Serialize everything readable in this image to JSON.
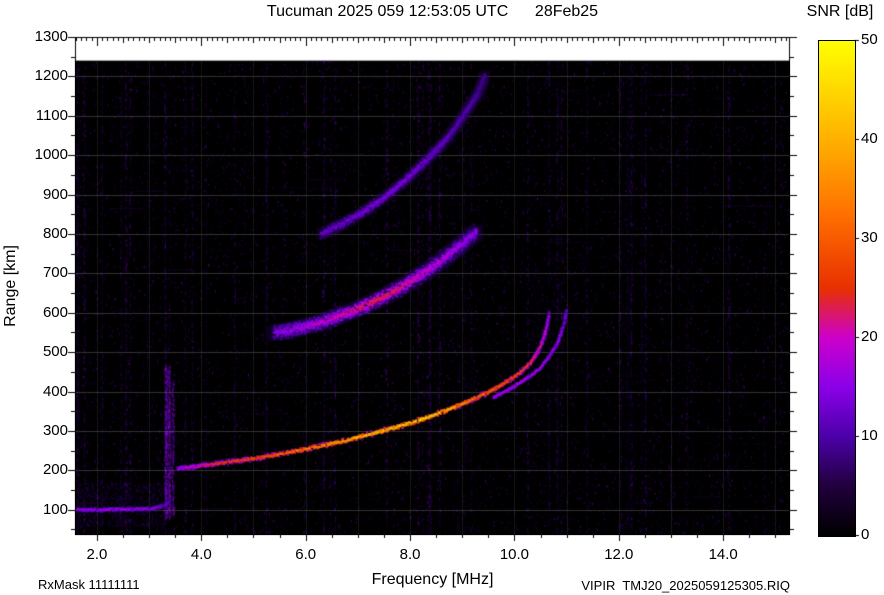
{
  "header": {
    "title": "Tucuman 2025 059 12:53:05 UTC      28Feb25",
    "colorbar_title": "SNR [dB]"
  },
  "footer": {
    "rx_mask": "RxMask 11111111",
    "xlabel": "Frequency [MHz]",
    "filename": "VIPIR  TMJ20_2025059125305.RIQ"
  },
  "chart_data": {
    "type": "heatmap",
    "title": "Tucuman 2025 059 12:53:05 UTC 28Feb25",
    "xlabel": "Frequency [MHz]",
    "ylabel": "Range [km]",
    "xlim": [
      1.58,
      15.28
    ],
    "ylim": [
      36,
      1300
    ],
    "data_top_range": 1240,
    "grid": true,
    "background": "#000000",
    "x_ticks": [
      2.0,
      4.0,
      6.0,
      8.0,
      10.0,
      12.0,
      14.0
    ],
    "x_tick_labels": [
      "2.0",
      "4.0",
      "6.0",
      "8.0",
      "10.0",
      "12.0",
      "14.0"
    ],
    "y_ticks": [
      100,
      200,
      300,
      400,
      500,
      600,
      700,
      800,
      900,
      1000,
      1100,
      1200,
      1300
    ],
    "y_tick_labels": [
      "100",
      "200",
      "300",
      "400",
      "500",
      "600",
      "700",
      "800",
      "900",
      "1000",
      "1100",
      "1200",
      "1300"
    ],
    "colorbar": {
      "label": "SNR [dB]",
      "min": 0,
      "max": 50,
      "ticks": [
        0,
        10,
        20,
        30,
        40,
        50
      ],
      "tick_labels": [
        "0",
        "10",
        "20",
        "30",
        "40",
        "50"
      ],
      "stops": [
        [
          0.0,
          "#000000"
        ],
        [
          0.1,
          "#20003c"
        ],
        [
          0.2,
          "#4b00a8"
        ],
        [
          0.3,
          "#8a00e8"
        ],
        [
          0.4,
          "#cc00cc"
        ],
        [
          0.5,
          "#e83000"
        ],
        [
          0.65,
          "#ff7000"
        ],
        [
          0.8,
          "#ffb000"
        ],
        [
          1.0,
          "#ffff00"
        ]
      ]
    },
    "noise": {
      "seed": 42,
      "speckle_count": 26000,
      "streak_count": 90,
      "patches": [
        {
          "f1": 1.6,
          "f2": 3.3,
          "r1": 60,
          "r2": 170,
          "count": 1400,
          "t": 0.16,
          "alpha": 0.38
        },
        {
          "f1": 10.2,
          "f2": 11.4,
          "r1": 560,
          "r2": 740,
          "count": 500,
          "t": 0.14,
          "alpha": 0.25
        }
      ],
      "strong_stripes": [
        {
          "f": 3.32,
          "r1": 80,
          "r2": 470,
          "strength": 0.9
        },
        {
          "f": 3.38,
          "r1": 80,
          "r2": 470,
          "strength": 0.8
        },
        {
          "f": 3.45,
          "r1": 90,
          "r2": 430,
          "strength": 0.6
        },
        {
          "f": 1.75,
          "r1": 40,
          "r2": 1240,
          "strength": 0.35
        },
        {
          "f": 2.55,
          "r1": 40,
          "r2": 1240,
          "strength": 0.3
        },
        {
          "f": 7.55,
          "r1": 40,
          "r2": 1240,
          "strength": 0.35
        },
        {
          "f": 8.15,
          "r1": 40,
          "r2": 1240,
          "strength": 0.4
        },
        {
          "f": 8.35,
          "r1": 40,
          "r2": 1240,
          "strength": 0.3
        },
        {
          "f": 10.9,
          "r1": 40,
          "r2": 1240,
          "strength": 0.3
        },
        {
          "f": 13.3,
          "r1": 40,
          "r2": 1240,
          "strength": 0.25
        }
      ]
    },
    "traces": [
      {
        "name": "E-layer-echo",
        "spread": 2,
        "points": [
          [
            1.6,
            100,
            14
          ],
          [
            2.0,
            100,
            15
          ],
          [
            2.4,
            101,
            15
          ],
          [
            2.8,
            102,
            14
          ],
          [
            3.1,
            104,
            13
          ],
          [
            3.3,
            110,
            11
          ],
          [
            3.42,
            125,
            9
          ]
        ]
      },
      {
        "name": "F-trace-first-hop-O-mode",
        "spread": 2.5,
        "points": [
          [
            3.55,
            205,
            16
          ],
          [
            3.9,
            210,
            20
          ],
          [
            4.3,
            217,
            24
          ],
          [
            4.7,
            224,
            26
          ],
          [
            5.1,
            232,
            28
          ],
          [
            5.5,
            241,
            30
          ],
          [
            5.9,
            251,
            33
          ],
          [
            6.3,
            262,
            36
          ],
          [
            6.7,
            274,
            39
          ],
          [
            7.1,
            287,
            41
          ],
          [
            7.5,
            301,
            43
          ],
          [
            7.9,
            316,
            44
          ],
          [
            8.3,
            333,
            45
          ],
          [
            8.7,
            352,
            40
          ],
          [
            9.1,
            374,
            35
          ],
          [
            9.5,
            398,
            31
          ],
          [
            9.8,
            420,
            28
          ],
          [
            10.1,
            446,
            26
          ],
          [
            10.3,
            472,
            24
          ],
          [
            10.45,
            500,
            22
          ],
          [
            10.55,
            530,
            20
          ],
          [
            10.62,
            565,
            17
          ],
          [
            10.67,
            600,
            14
          ]
        ]
      },
      {
        "name": "F-trace-first-hop-X-mode",
        "spread": 2,
        "points": [
          [
            9.6,
            385,
            16
          ],
          [
            9.9,
            405,
            16
          ],
          [
            10.2,
            430,
            16
          ],
          [
            10.5,
            460,
            15
          ],
          [
            10.7,
            495,
            15
          ],
          [
            10.85,
            530,
            14
          ],
          [
            10.95,
            570,
            13
          ],
          [
            11.0,
            610,
            11
          ]
        ]
      },
      {
        "name": "F-trace-second-hop",
        "spread": 7,
        "points": [
          [
            5.4,
            548,
            13
          ],
          [
            5.8,
            558,
            15
          ],
          [
            6.2,
            572,
            17
          ],
          [
            6.6,
            590,
            19
          ],
          [
            7.0,
            610,
            21
          ],
          [
            7.4,
            634,
            22
          ],
          [
            7.8,
            662,
            21
          ],
          [
            8.2,
            695,
            19
          ],
          [
            8.6,
            732,
            17
          ],
          [
            9.0,
            775,
            15
          ],
          [
            9.3,
            808,
            13
          ]
        ]
      },
      {
        "name": "F-trace-third-hop",
        "spread": 5,
        "points": [
          [
            6.3,
            800,
            10
          ],
          [
            6.7,
            825,
            11
          ],
          [
            7.1,
            855,
            12
          ],
          [
            7.5,
            892,
            12
          ],
          [
            7.9,
            935,
            12
          ],
          [
            8.3,
            985,
            11
          ],
          [
            8.7,
            1040,
            10
          ],
          [
            9.0,
            1095,
            9
          ],
          [
            9.3,
            1155,
            8
          ],
          [
            9.45,
            1205,
            7
          ]
        ]
      }
    ]
  }
}
